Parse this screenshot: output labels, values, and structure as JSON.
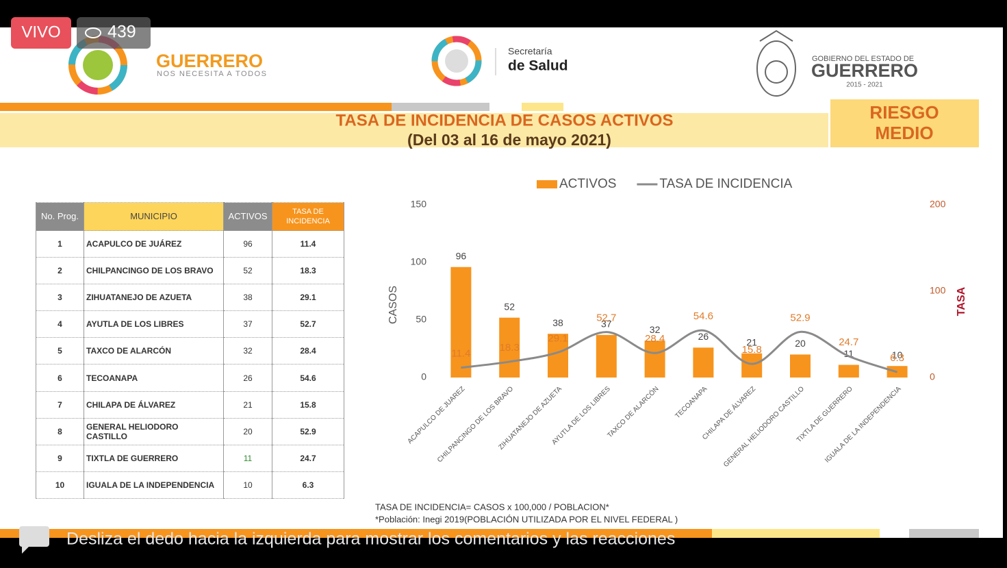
{
  "overlay": {
    "live": "VIVO",
    "viewers": 439,
    "hint": "Desliza el dedo hacia la izquierda para mostrar los comentarios y las reacciones"
  },
  "header": {
    "brand_title": "GUERRERO",
    "brand_subtitle": "NOS NECESITA A TODOS",
    "health_line1": "Secretaría",
    "health_line2": "de Salud",
    "gov_line1": "GOBIERNO DEL ESTADO DE",
    "gov_line2": "GUERRERO",
    "gov_line3": "2015 - 2021"
  },
  "slide": {
    "title": "TASA DE INCIDENCIA DE CASOS ACTIVOS",
    "subtitle": "(Del 03 al 16 de mayo 2021)",
    "risk_line1": "RIESGO",
    "risk_line2": "MEDIO",
    "footnote1": "TASA DE INCIDENCIA= CASOS x 100,000 / POBLACION*",
    "footnote2": "*Población: Inegi 2019(POBLACIÓN UTILIZADA POR EL NIVEL FEDERAL )"
  },
  "table": {
    "columns": [
      "No. Prog.",
      "MUNICIPIO",
      "ACTIVOS",
      "TASA DE INCIDENCIA"
    ],
    "rows": [
      [
        1,
        "ACAPULCO DE JUÁREZ",
        96,
        11.4
      ],
      [
        2,
        "CHILPANCINGO DE LOS BRAVO",
        52,
        18.3
      ],
      [
        3,
        "ZIHUATANEJO DE AZUETA",
        38,
        29.1
      ],
      [
        4,
        "AYUTLA DE LOS LIBRES",
        37,
        52.7
      ],
      [
        5,
        "TAXCO DE ALARCÓN",
        32,
        28.4
      ],
      [
        6,
        "TECOANAPA",
        26,
        54.6
      ],
      [
        7,
        "CHILAPA DE ÁLVAREZ",
        21,
        15.8
      ],
      [
        8,
        "GENERAL HELIODORO CASTILLO",
        20,
        52.9
      ],
      [
        9,
        "TIXTLA DE GUERRERO",
        11,
        24.7
      ],
      [
        10,
        "IGUALA DE LA INDEPENDENCIA",
        10,
        6.3
      ]
    ]
  },
  "chart_data": {
    "type": "bar",
    "categories": [
      "ACAPULCO DE JUAREZ",
      "CHILPANCINGO DE LOS BRAVO",
      "ZIHUATANEJO DE AZUETA",
      "AYUTLA DE LOS LIBRES",
      "TAXCO DE ALARCÓN",
      "TECOANAPA",
      "CHILAPA DE ÁLVAREZ",
      "GENERAL HELIODORO CASTILLO",
      "TIXTLA DE GUERRERO",
      "IGUALA DE LA INDEPENDENCIA"
    ],
    "series": [
      {
        "name": "ACTIVOS",
        "type": "bar",
        "color": "#f7941d",
        "values": [
          96,
          52,
          38,
          37,
          32,
          26,
          21,
          20,
          11,
          10
        ]
      },
      {
        "name": "TASA DE INCIDENCIA",
        "type": "line",
        "axis": "y2",
        "color": "#8a8a8a",
        "values": [
          11.4,
          18.3,
          29.1,
          52.7,
          28.4,
          54.6,
          15.8,
          52.9,
          24.7,
          6.3
        ]
      }
    ],
    "ylabel": "CASOS",
    "y2label": "TASA",
    "ylim": [
      0,
      150
    ],
    "yticks": [
      0,
      50,
      100,
      150
    ],
    "y2lim": [
      0,
      200
    ],
    "y2ticks": [
      0,
      100,
      200
    ],
    "legend": "top",
    "grid": false
  }
}
